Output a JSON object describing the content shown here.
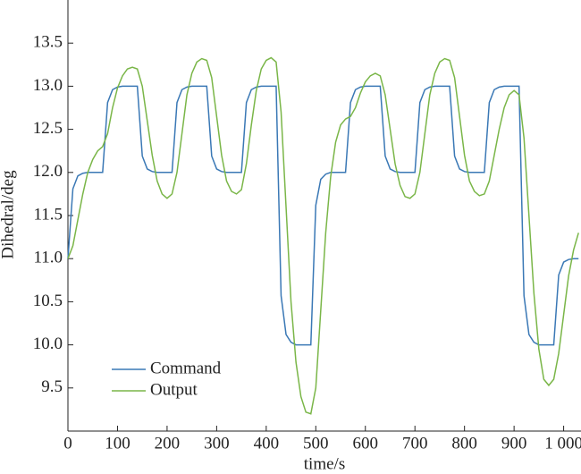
{
  "chart_data": {
    "type": "line",
    "x_label": "time/s",
    "y_label": "Dihedral/deg",
    "xlim": [
      0,
      1035
    ],
    "ylim": [
      9.0,
      14.0
    ],
    "xticks": [
      0,
      100,
      200,
      300,
      400,
      500,
      600,
      700,
      800,
      900,
      {
        "value": 1000,
        "label": "1 000"
      }
    ],
    "yticks": [
      9.5,
      {
        "value": 10,
        "label": "10.0"
      },
      10.5,
      {
        "value": 11,
        "label": "11.0"
      },
      11.5,
      {
        "value": 12,
        "label": "12.0"
      },
      12.5,
      {
        "value": 13,
        "label": "13.0"
      },
      13.5
    ],
    "legend": "lower left",
    "x": [
      0,
      10,
      20,
      30,
      40,
      50,
      60,
      70,
      80,
      90,
      100,
      110,
      120,
      130,
      140,
      150,
      160,
      170,
      180,
      190,
      200,
      210,
      220,
      230,
      240,
      250,
      260,
      270,
      280,
      290,
      300,
      310,
      320,
      330,
      340,
      350,
      360,
      370,
      380,
      390,
      400,
      410,
      420,
      430,
      440,
      450,
      460,
      470,
      480,
      490,
      500,
      510,
      520,
      530,
      540,
      550,
      560,
      570,
      580,
      590,
      600,
      610,
      620,
      630,
      640,
      650,
      660,
      670,
      680,
      690,
      700,
      710,
      720,
      730,
      740,
      750,
      760,
      770,
      780,
      790,
      800,
      810,
      820,
      830,
      840,
      850,
      860,
      870,
      880,
      890,
      900,
      910,
      920,
      930,
      940,
      950,
      960,
      970,
      980,
      990,
      1000,
      1010,
      1020,
      1030
    ],
    "series": [
      {
        "name": "Command",
        "color": "#3a78b5",
        "values": [
          11,
          11.81,
          11.96,
          11.99,
          12,
          12,
          12,
          12,
          12.81,
          12.96,
          12.99,
          13,
          13,
          13,
          13,
          12.19,
          12.04,
          12.01,
          12,
          12,
          12,
          12,
          12.81,
          12.96,
          12.99,
          13,
          13,
          13,
          13,
          12.19,
          12.04,
          12.01,
          12,
          12,
          12,
          12,
          12.81,
          12.96,
          12.99,
          13,
          13,
          13,
          13,
          10.57,
          10.12,
          10.03,
          10,
          10,
          10,
          10,
          11.62,
          11.92,
          11.98,
          12,
          12,
          12,
          12,
          12.81,
          12.96,
          12.99,
          13,
          13,
          13,
          13,
          12.19,
          12.04,
          12.01,
          12,
          12,
          12,
          12,
          12.81,
          12.96,
          12.99,
          13,
          13,
          13,
          13,
          12.19,
          12.04,
          12.01,
          12,
          12,
          12,
          12,
          12.81,
          12.96,
          12.99,
          13,
          13,
          13,
          13,
          10.57,
          10.12,
          10.03,
          10,
          10,
          10,
          10,
          10.81,
          10.96,
          10.99,
          11,
          11
        ]
      },
      {
        "name": "Output",
        "color": "#7ab648",
        "values": [
          11.0,
          11.15,
          11.45,
          11.75,
          12.0,
          12.15,
          12.25,
          12.3,
          12.45,
          12.75,
          12.98,
          13.12,
          13.2,
          13.22,
          13.2,
          13.0,
          12.6,
          12.2,
          11.9,
          11.75,
          11.7,
          11.75,
          12.0,
          12.45,
          12.9,
          13.15,
          13.28,
          13.32,
          13.3,
          13.1,
          12.65,
          12.2,
          11.9,
          11.78,
          11.75,
          11.8,
          12.1,
          12.55,
          12.95,
          13.2,
          13.3,
          13.33,
          13.28,
          12.7,
          11.6,
          10.5,
          9.8,
          9.4,
          9.22,
          9.2,
          9.5,
          10.4,
          11.3,
          11.95,
          12.35,
          12.55,
          12.62,
          12.65,
          12.75,
          12.92,
          13.05,
          13.12,
          13.15,
          13.12,
          12.9,
          12.5,
          12.1,
          11.85,
          11.72,
          11.7,
          11.75,
          12.0,
          12.45,
          12.9,
          13.15,
          13.28,
          13.32,
          13.3,
          13.1,
          12.65,
          12.2,
          11.9,
          11.78,
          11.73,
          11.75,
          11.9,
          12.2,
          12.5,
          12.75,
          12.9,
          12.95,
          12.9,
          12.4,
          11.5,
          10.6,
          9.95,
          9.6,
          9.53,
          9.6,
          9.9,
          10.35,
          10.8,
          11.1,
          11.3
        ]
      }
    ]
  }
}
